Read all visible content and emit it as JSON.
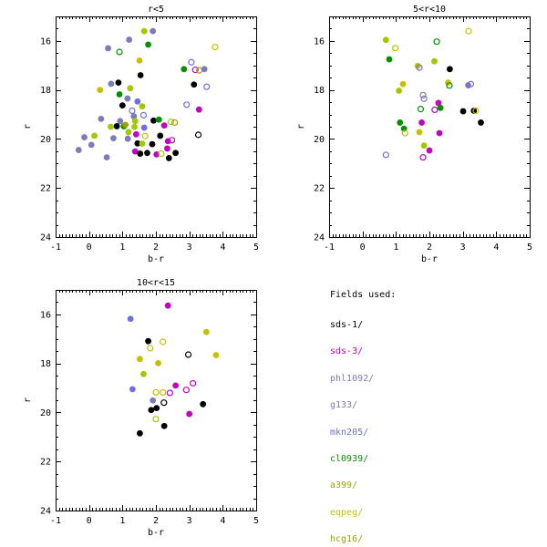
{
  "page": {
    "background": "#ffffff"
  },
  "palette": {
    "black": "#000000",
    "magenta": "#c400c4",
    "slate": "#7b7bbe",
    "periwinkle": "#6e6ee8",
    "green": "#009000",
    "chartreuse": "#a2c800",
    "yellow": "#c6c000",
    "olive": "#a2a200"
  },
  "chart_data": [
    {
      "type": "scatter",
      "id": "r-lt-5",
      "title": "r<5",
      "xlabel": "b-r",
      "ylabel": "r",
      "xlim": [
        -1,
        5
      ],
      "ylim": [
        15,
        24
      ],
      "y_inverted": true,
      "xticks": [
        -1,
        0,
        1,
        2,
        3,
        4,
        5
      ],
      "yticks": [
        16,
        18,
        20,
        22,
        24
      ],
      "x_minor_step": 0.1,
      "y_minor_step": 0.5,
      "grid": false,
      "points": [
        [
          1.65,
          15.6,
          "chartreuse",
          1
        ],
        [
          1.91,
          15.6,
          "slate",
          1
        ],
        [
          1.2,
          15.95,
          "slate",
          1
        ],
        [
          1.77,
          16.15,
          "green",
          1
        ],
        [
          0.57,
          16.3,
          "slate",
          1
        ],
        [
          0.91,
          16.45,
          "green",
          0
        ],
        [
          3.77,
          16.25,
          "yellow",
          0
        ],
        [
          1.51,
          16.8,
          "yellow",
          1
        ],
        [
          3.06,
          16.87,
          "periwinkle",
          0
        ],
        [
          2.84,
          17.15,
          "green",
          1
        ],
        [
          3.18,
          17.18,
          "magenta",
          0
        ],
        [
          3.3,
          17.2,
          "olive",
          0
        ],
        [
          3.45,
          17.15,
          "slate",
          1
        ],
        [
          1.54,
          17.4,
          "black",
          1
        ],
        [
          3.14,
          17.78,
          "black",
          1
        ],
        [
          0.88,
          17.7,
          "black",
          1
        ],
        [
          0.66,
          17.75,
          "slate",
          1
        ],
        [
          3.52,
          17.87,
          "periwinkle",
          0
        ],
        [
          0.33,
          18.0,
          "yellow",
          1
        ],
        [
          1.23,
          17.93,
          "chartreuse",
          1
        ],
        [
          0.91,
          18.18,
          "green",
          1
        ],
        [
          1.15,
          18.35,
          "slate",
          1
        ],
        [
          1.45,
          18.47,
          "periwinkle",
          1
        ],
        [
          1.0,
          18.63,
          "black",
          1
        ],
        [
          1.59,
          18.67,
          "chartreuse",
          1
        ],
        [
          2.92,
          18.6,
          "periwinkle",
          0
        ],
        [
          1.29,
          18.85,
          "periwinkle",
          0
        ],
        [
          3.29,
          18.8,
          "magenta",
          1
        ],
        [
          1.34,
          19.08,
          "slate",
          1
        ],
        [
          1.63,
          19.03,
          "periwinkle",
          0
        ],
        [
          0.36,
          19.18,
          "slate",
          1
        ],
        [
          1.93,
          19.25,
          "black",
          1
        ],
        [
          2.09,
          19.21,
          "green",
          1
        ],
        [
          1.38,
          19.27,
          "chartreuse",
          1
        ],
        [
          0.93,
          19.27,
          "slate",
          1
        ],
        [
          2.45,
          19.3,
          "chartreuse",
          0
        ],
        [
          2.56,
          19.33,
          "olive",
          0
        ],
        [
          0.65,
          19.5,
          "chartreuse",
          1
        ],
        [
          0.83,
          19.48,
          "black",
          1
        ],
        [
          1.04,
          19.48,
          "green",
          1
        ],
        [
          1.09,
          19.42,
          "olive",
          1
        ],
        [
          1.36,
          19.51,
          "chartreuse",
          1
        ],
        [
          1.65,
          19.54,
          "periwinkle",
          1
        ],
        [
          2.25,
          19.45,
          "magenta",
          1
        ],
        [
          1.18,
          19.72,
          "chartreuse",
          1
        ],
        [
          1.41,
          19.81,
          "magenta",
          1
        ],
        [
          1.68,
          19.88,
          "yellow",
          0
        ],
        [
          -0.14,
          19.93,
          "slate",
          1
        ],
        [
          0.16,
          19.87,
          "chartreuse",
          1
        ],
        [
          0.73,
          19.97,
          "slate",
          1
        ],
        [
          1.16,
          19.99,
          "slate",
          1
        ],
        [
          2.13,
          19.87,
          "black",
          1
        ],
        [
          2.36,
          20.09,
          "magenta",
          1
        ],
        [
          1.45,
          20.18,
          "black",
          1
        ],
        [
          1.59,
          20.19,
          "chartreuse",
          1
        ],
        [
          1.89,
          20.21,
          "black",
          1
        ],
        [
          2.48,
          20.05,
          "magenta",
          0
        ],
        [
          0.07,
          20.24,
          "slate",
          1
        ],
        [
          -0.31,
          20.45,
          "slate",
          1
        ],
        [
          1.38,
          20.51,
          "magenta",
          1
        ],
        [
          1.53,
          20.6,
          "black",
          1
        ],
        [
          1.74,
          20.57,
          "black",
          1
        ],
        [
          2.02,
          20.63,
          "magenta",
          1
        ],
        [
          2.16,
          20.6,
          "chartreuse",
          0
        ],
        [
          2.34,
          20.39,
          "magenta",
          1
        ],
        [
          2.59,
          20.57,
          "black",
          1
        ],
        [
          2.39,
          20.78,
          "black",
          1
        ],
        [
          0.53,
          20.75,
          "slate",
          1
        ],
        [
          3.27,
          19.83,
          "black",
          0
        ]
      ]
    },
    {
      "type": "scatter",
      "id": "5-lt-r-lt-10",
      "title": "5<r<10",
      "xlabel": "b-r",
      "ylabel": "r",
      "xlim": [
        -1,
        5
      ],
      "ylim": [
        15,
        24
      ],
      "y_inverted": true,
      "xticks": [
        -1,
        0,
        1,
        2,
        3,
        4,
        5
      ],
      "yticks": [
        16,
        18,
        20,
        22,
        24
      ],
      "x_minor_step": 0.1,
      "y_minor_step": 0.5,
      "grid": false,
      "points": [
        [
          3.17,
          15.6,
          "yellow",
          0
        ],
        [
          0.7,
          15.96,
          "chartreuse",
          1
        ],
        [
          2.22,
          16.03,
          "green",
          0
        ],
        [
          0.98,
          16.29,
          "yellow",
          0
        ],
        [
          0.8,
          16.75,
          "green",
          1
        ],
        [
          2.15,
          16.83,
          "chartreuse",
          1
        ],
        [
          1.65,
          17.02,
          "yellow",
          1
        ],
        [
          1.7,
          17.09,
          "periwinkle",
          0
        ],
        [
          2.61,
          17.15,
          "black",
          1
        ],
        [
          1.21,
          17.76,
          "yellow",
          1
        ],
        [
          3.16,
          17.81,
          "slate",
          1
        ],
        [
          3.24,
          17.76,
          "periwinkle",
          0
        ],
        [
          2.56,
          17.7,
          "yellow",
          1
        ],
        [
          2.6,
          17.82,
          "green",
          0
        ],
        [
          1.09,
          18.03,
          "chartreuse",
          1
        ],
        [
          1.81,
          18.21,
          "slate",
          0
        ],
        [
          1.84,
          18.36,
          "slate",
          0
        ],
        [
          2.27,
          18.53,
          "magenta",
          1
        ],
        [
          1.74,
          18.78,
          "green",
          0
        ],
        [
          2.16,
          18.81,
          "magenta",
          0
        ],
        [
          2.33,
          18.73,
          "green",
          1
        ],
        [
          3.01,
          18.87,
          "black",
          1
        ],
        [
          3.33,
          18.85,
          "black",
          1
        ],
        [
          3.39,
          18.85,
          "yellow",
          0
        ],
        [
          3.54,
          19.33,
          "black",
          1
        ],
        [
          1.12,
          19.33,
          "green",
          1
        ],
        [
          1.77,
          19.33,
          "magenta",
          1
        ],
        [
          1.24,
          19.58,
          "green",
          1
        ],
        [
          1.27,
          19.76,
          "yellow",
          0
        ],
        [
          1.7,
          19.72,
          "yellow",
          1
        ],
        [
          2.3,
          19.76,
          "magenta",
          1
        ],
        [
          1.84,
          20.27,
          "chartreuse",
          1
        ],
        [
          2.0,
          20.47,
          "magenta",
          1
        ],
        [
          0.7,
          20.65,
          "periwinkle",
          0
        ],
        [
          1.81,
          20.75,
          "magenta",
          0
        ]
      ]
    },
    {
      "type": "scatter",
      "id": "10-lt-r-lt-15",
      "title": "10<r<15",
      "xlabel": "b-r",
      "ylabel": "r",
      "xlim": [
        -1,
        5
      ],
      "ylim": [
        15,
        24
      ],
      "y_inverted": true,
      "xticks": [
        -1,
        0,
        1,
        2,
        3,
        4,
        5
      ],
      "yticks": [
        16,
        18,
        20,
        22,
        24
      ],
      "x_minor_step": 0.1,
      "y_minor_step": 0.5,
      "grid": false,
      "points": [
        [
          2.36,
          15.64,
          "magenta",
          1
        ],
        [
          1.24,
          16.18,
          "periwinkle",
          1
        ],
        [
          3.51,
          16.72,
          "yellow",
          1
        ],
        [
          1.77,
          17.09,
          "black",
          1
        ],
        [
          2.21,
          17.12,
          "yellow",
          0
        ],
        [
          1.83,
          17.38,
          "yellow",
          0
        ],
        [
          2.97,
          17.64,
          "black",
          0
        ],
        [
          3.8,
          17.66,
          "yellow",
          1
        ],
        [
          1.52,
          17.82,
          "yellow",
          1
        ],
        [
          2.07,
          17.99,
          "yellow",
          1
        ],
        [
          1.63,
          18.43,
          "chartreuse",
          1
        ],
        [
          2.59,
          18.9,
          "magenta",
          1
        ],
        [
          3.11,
          18.81,
          "magenta",
          0
        ],
        [
          2.91,
          19.08,
          "magenta",
          0
        ],
        [
          1.3,
          19.05,
          "periwinkle",
          1
        ],
        [
          2.0,
          19.18,
          "yellow",
          0
        ],
        [
          2.21,
          19.18,
          "yellow",
          0
        ],
        [
          2.42,
          19.2,
          "magenta",
          0
        ],
        [
          1.91,
          19.51,
          "slate",
          1
        ],
        [
          2.24,
          19.6,
          "black",
          0
        ],
        [
          3.41,
          19.66,
          "black",
          1
        ],
        [
          1.86,
          19.9,
          "black",
          1
        ],
        [
          2.02,
          19.82,
          "black",
          1
        ],
        [
          3.0,
          20.06,
          "magenta",
          1
        ],
        [
          2.0,
          20.27,
          "chartreuse",
          0
        ],
        [
          2.25,
          20.55,
          "black",
          1
        ],
        [
          1.52,
          20.85,
          "black",
          1
        ]
      ]
    }
  ],
  "legend": {
    "header": "Fields used:",
    "items": [
      {
        "label": "sds-1/",
        "color": "black"
      },
      {
        "label": "sds-3/",
        "color": "magenta"
      },
      {
        "label": "phl1092/",
        "color": "slate"
      },
      {
        "label": "g133/",
        "color": "slate"
      },
      {
        "label": "mkn205/",
        "color": "periwinkle"
      },
      {
        "label": "cl0939/",
        "color": "green"
      },
      {
        "label": "a399/",
        "color": "olive"
      },
      {
        "label": "eqpeg/",
        "color": "yellow"
      },
      {
        "label": "hcg16/",
        "color": "olive"
      }
    ]
  }
}
